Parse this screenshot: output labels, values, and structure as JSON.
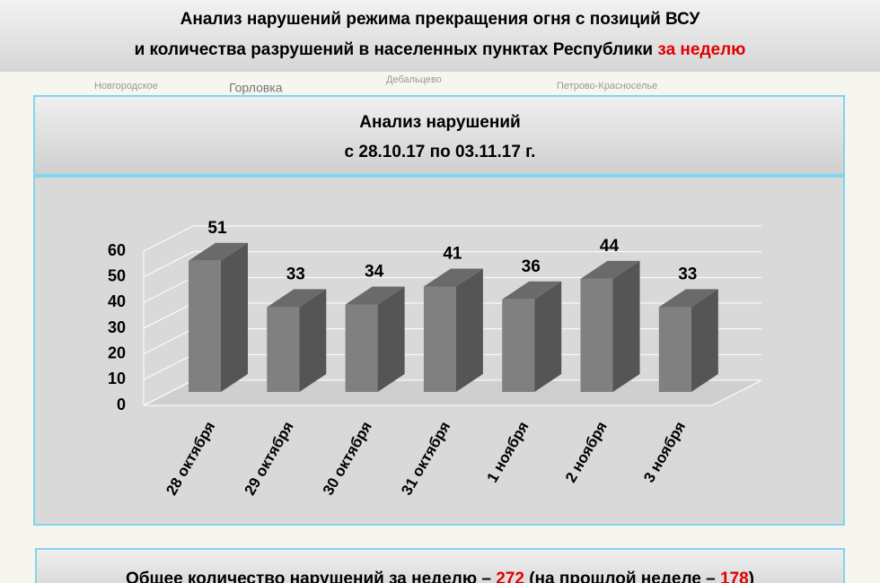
{
  "header": {
    "line1": "Анализ нарушений режима прекращения огня с позиций ВСУ",
    "line2": "и количества разрушений в населенных пунктах Республики ",
    "line2_highlight": "за неделю"
  },
  "map_labels": [
    "Новгородское",
    "Горловка",
    "Дебальцево",
    "Петрово-Красноселье"
  ],
  "chart_data": {
    "type": "bar",
    "title": "Анализ нарушений",
    "subtitle": "с 28.10.17 по 03.11.17 г.",
    "categories": [
      "28 октября",
      "29 октября",
      "30 октября",
      "31 октября",
      "1 ноября",
      "2 ноября",
      "3 ноября"
    ],
    "values": [
      51,
      33,
      34,
      41,
      36,
      44,
      33
    ],
    "color": "#808080",
    "ylim": [
      0,
      60
    ],
    "yticks": [
      0,
      10,
      20,
      30,
      40,
      50,
      60
    ],
    "grid": true
  },
  "footer": {
    "before": "Общее количество нарушений за неделю – ",
    "total": 272,
    "middle": " (на прошлой неделе – ",
    "previous": 178,
    "after": ")"
  }
}
